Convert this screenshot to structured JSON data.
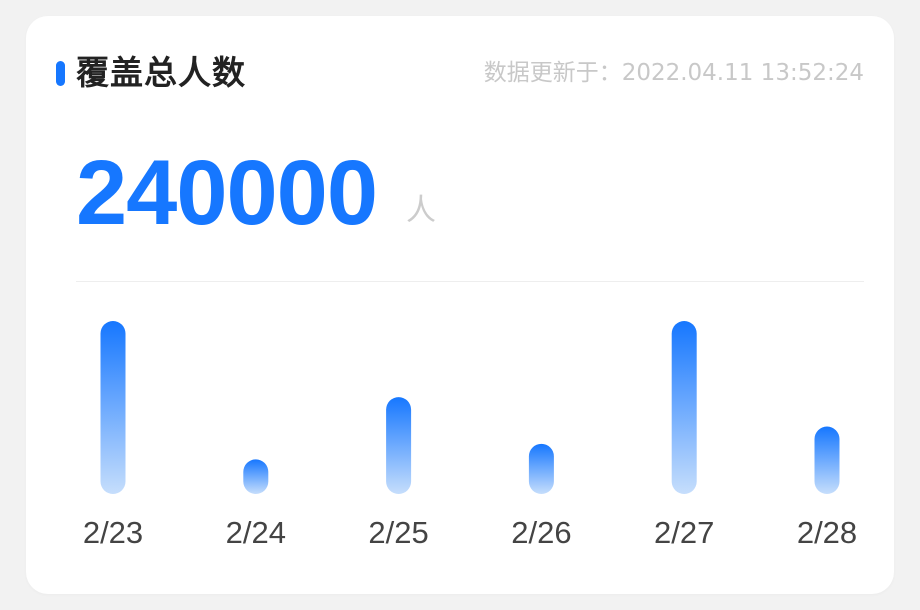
{
  "card": {
    "title": "覆盖总人数",
    "updated_prefix": "数据更新于：",
    "updated_time": "2022.04.11 13:52:24",
    "total_value": "240000",
    "unit": "人"
  },
  "colors": {
    "accent": "#1677ff",
    "bar_top": "#1677ff",
    "bar_bottom": "#c6defc",
    "title_text": "#222222",
    "muted_text": "#c8c8c8",
    "axis_text": "#444444"
  },
  "chart_data": {
    "type": "bar",
    "categories": [
      "2/23",
      "2/24",
      "2/25",
      "2/26",
      "2/27",
      "2/28"
    ],
    "values": [
      100,
      20,
      56,
      29,
      100,
      39
    ],
    "ylim": [
      0,
      100
    ],
    "grid": false,
    "legend": "none",
    "xlabel": "",
    "ylabel": "",
    "title": ""
  }
}
